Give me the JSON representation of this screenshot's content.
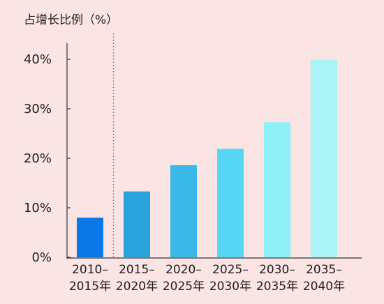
{
  "chart_data": {
    "type": "bar",
    "ylabel": "占增长比例（%）",
    "categories": [
      [
        "2010–",
        "2015年"
      ],
      [
        "2015–",
        "2020年"
      ],
      [
        "2020–",
        "2025年"
      ],
      [
        "2025–",
        "2030年"
      ],
      [
        "2030–",
        "2035年"
      ],
      [
        "2035–",
        "2040年"
      ]
    ],
    "values": [
      8,
      13.3,
      18.6,
      21.9,
      27.3,
      39.9
    ],
    "ylim": [
      0,
      40
    ],
    "yticks": [
      0,
      10,
      20,
      30,
      40
    ],
    "ytick_labels": [
      "0%",
      "10%",
      "20%",
      "30%",
      "40%"
    ],
    "colors": [
      "#0a78e6",
      "#2aa3dd",
      "#3ab9e8",
      "#54d6f4",
      "#8ff1f7",
      "#abf4f5"
    ],
    "axis_color": "#333333",
    "divider": "dotted line after first category",
    "grid": false
  }
}
